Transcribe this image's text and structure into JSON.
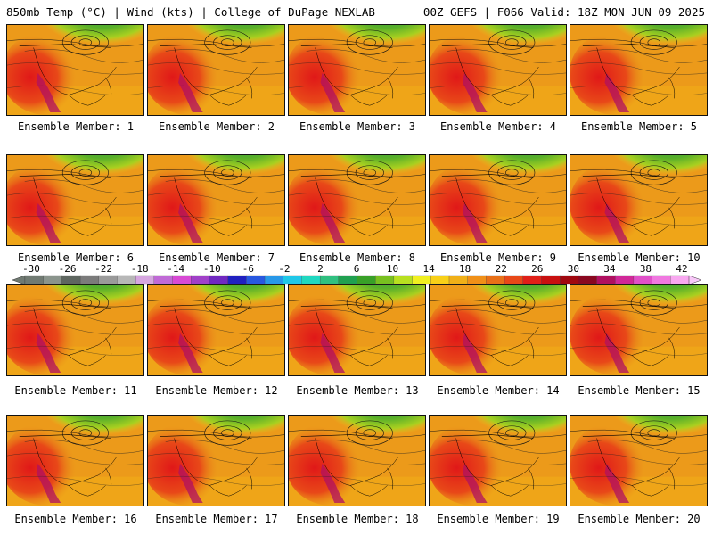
{
  "header": {
    "left": "850mb Temp (°C) | Wind (kts) | College of DuPage NEXLAB",
    "right": "00Z GEFS | F066 Valid: 18Z MON JUN 09 2025"
  },
  "members": [
    "Ensemble Member: 1",
    "Ensemble Member: 2",
    "Ensemble Member: 3",
    "Ensemble Member: 4",
    "Ensemble Member: 5",
    "Ensemble Member: 6",
    "Ensemble Member: 7",
    "Ensemble Member: 8",
    "Ensemble Member: 9",
    "Ensemble Member: 10",
    "Ensemble Member: 11",
    "Ensemble Member: 12",
    "Ensemble Member: 13",
    "Ensemble Member: 14",
    "Ensemble Member: 15",
    "Ensemble Member: 16",
    "Ensemble Member: 17",
    "Ensemble Member: 18",
    "Ensemble Member: 19",
    "Ensemble Member: 20"
  ],
  "colorbar": {
    "ticks": [
      "-30",
      "-26",
      "-22",
      "-18",
      "-14",
      "-10",
      "-6",
      "-2",
      "2",
      "6",
      "10",
      "14",
      "18",
      "22",
      "26",
      "30",
      "34",
      "38",
      "42"
    ],
    "colors": [
      "#707a72",
      "#8a948c",
      "#5e6660",
      "#7b7b7b",
      "#9a9a9a",
      "#b7b7b7",
      "#d6a6e0",
      "#c06ad6",
      "#d84ad4",
      "#a040c8",
      "#7028c0",
      "#2020c0",
      "#2858e0",
      "#2898e8",
      "#20c8e8",
      "#20d8c0",
      "#30c080",
      "#20a050",
      "#38a028",
      "#78c020",
      "#b8e020",
      "#f0f020",
      "#f8d018",
      "#f0b018",
      "#f09018",
      "#e87018",
      "#e84818",
      "#e02018",
      "#c81010",
      "#a00810",
      "#8a0820",
      "#b01060",
      "#d02898",
      "#e050c8",
      "#f078e0",
      "#f8a8f0"
    ]
  }
}
